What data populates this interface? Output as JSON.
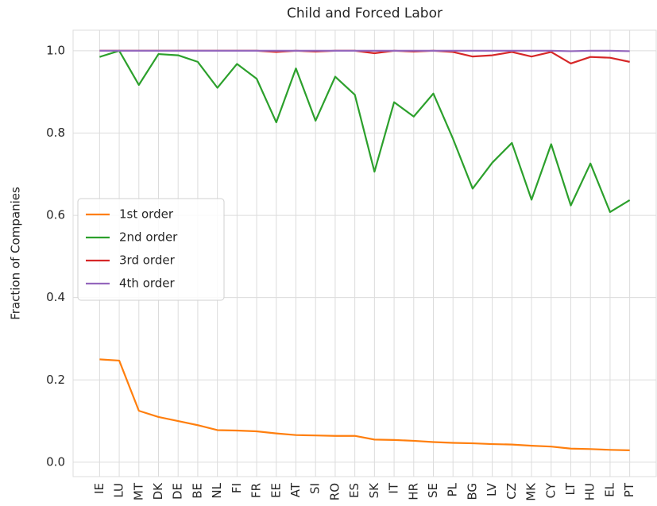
{
  "chart_data": {
    "type": "line",
    "title": "Child and Forced Labor",
    "y_label": "Fraction of Companies",
    "categories": [
      "IE",
      "LU",
      "MT",
      "DK",
      "DE",
      "BE",
      "NL",
      "FI",
      "FR",
      "EE",
      "AT",
      "SI",
      "RO",
      "ES",
      "SK",
      "IT",
      "HR",
      "SE",
      "PL",
      "BG",
      "LV",
      "CZ",
      "MK",
      "CY",
      "LT",
      "HU",
      "EL",
      "PT"
    ],
    "series": [
      {
        "name": "1st order",
        "color": "#ff7f0e",
        "values": [
          0.25,
          0.247,
          0.125,
          0.11,
          0.1,
          0.09,
          0.078,
          0.077,
          0.075,
          0.07,
          0.066,
          0.065,
          0.064,
          0.064,
          0.055,
          0.054,
          0.052,
          0.049,
          0.047,
          0.046,
          0.044,
          0.043,
          0.04,
          0.038,
          0.033,
          0.032,
          0.03,
          0.029
        ]
      },
      {
        "name": "2nd order",
        "color": "#2ca02c",
        "values": [
          0.985,
          1.0,
          0.917,
          0.992,
          0.989,
          0.973,
          0.91,
          0.968,
          0.932,
          0.826,
          0.957,
          0.83,
          0.937,
          0.893,
          0.706,
          0.875,
          0.84,
          0.896,
          0.786,
          0.665,
          0.728,
          0.776,
          0.638,
          0.773,
          0.624,
          0.726,
          0.608,
          0.637
        ]
      },
      {
        "name": "3rd order",
        "color": "#d62728",
        "values": [
          1.0,
          1.0,
          1.0,
          1.0,
          1.0,
          1.0,
          1.0,
          1.0,
          1.0,
          0.997,
          1.0,
          0.998,
          1.0,
          1.0,
          0.994,
          1.0,
          0.998,
          1.0,
          0.997,
          0.986,
          0.989,
          0.997,
          0.986,
          0.997,
          0.969,
          0.985,
          0.983,
          0.973
        ]
      },
      {
        "name": "4th order",
        "color": "#9467bd",
        "values": [
          1.0,
          1.0,
          1.0,
          1.0,
          1.0,
          1.0,
          1.0,
          1.0,
          1.0,
          1.0,
          1.0,
          1.0,
          1.0,
          1.0,
          1.0,
          1.0,
          1.0,
          1.0,
          1.0,
          1.0,
          1.0,
          1.0,
          1.0,
          1.0,
          0.999,
          1.0,
          1.0,
          0.999
        ]
      }
    ],
    "ylim": [
      -0.035,
      1.05
    ],
    "yticks": [
      {
        "value": 0,
        "label": "0.0"
      },
      0.2,
      0.4,
      0.6,
      0.8,
      {
        "value": 1,
        "label": "1.0"
      }
    ],
    "grid": true,
    "legend": "center left"
  }
}
